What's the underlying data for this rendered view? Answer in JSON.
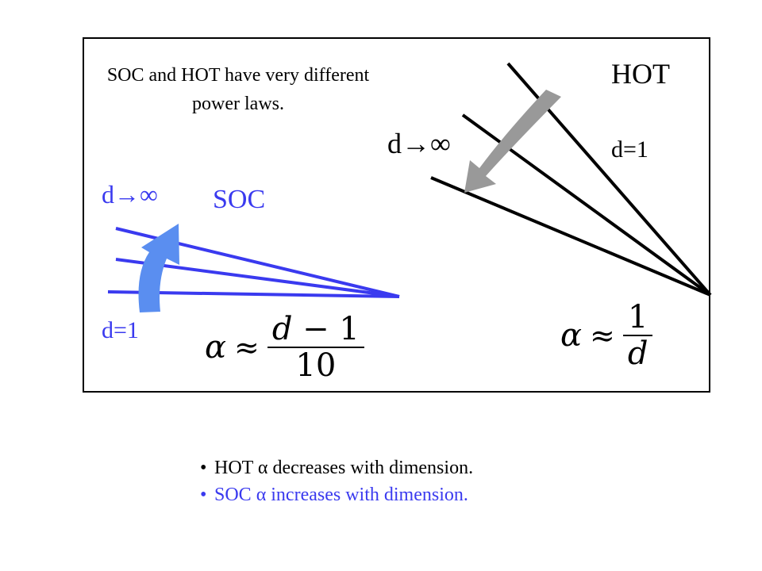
{
  "caption": "SOC and HOT have very different power laws.",
  "hot": {
    "label": "HOT",
    "d_one": "d=1",
    "d_infinity": "d→∞",
    "formula": {
      "alpha": "α",
      "approx": "≈",
      "numerator": "1",
      "denominator": "d"
    }
  },
  "soc": {
    "label": "SOC",
    "d_one": "d=1",
    "d_infinity": "d→∞",
    "formula": {
      "alpha": "α",
      "approx": "≈",
      "numerator_var": "d",
      "numerator_rest": " − 1",
      "denominator": "10"
    }
  },
  "bullets": {
    "symbol": "•",
    "hot": "HOT α decreases with dimension.",
    "soc": "SOC α increases with dimension."
  },
  "colors": {
    "soc_blue": "#3a3aef",
    "soc_arrow": "#5a8ef0",
    "hot_arrow": "#999999",
    "lines": "#000000"
  }
}
